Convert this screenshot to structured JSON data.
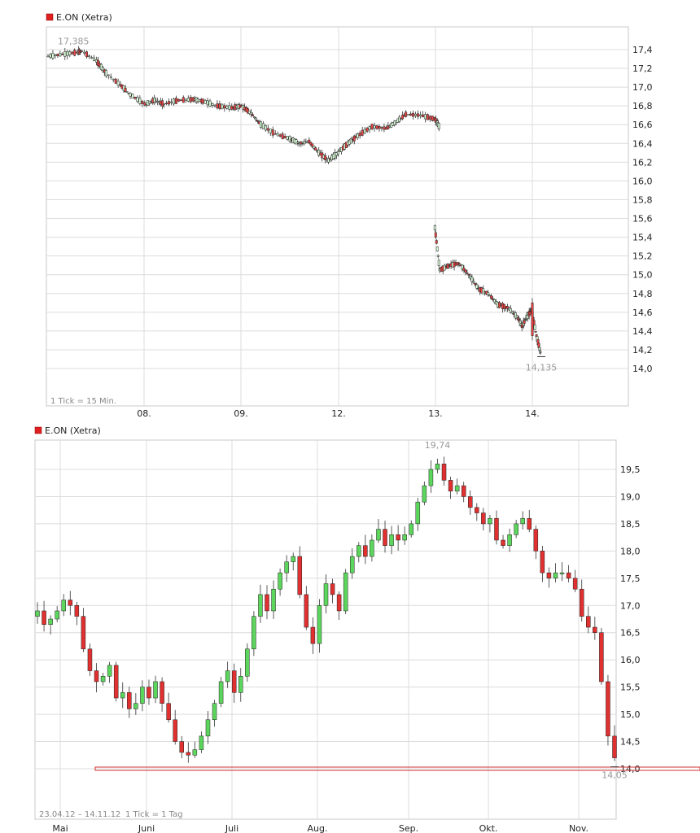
{
  "chart_data": [
    {
      "type": "candlestick",
      "title": "E.ON (Xetra)",
      "legend_color": "#e02020",
      "footnote": "1 Tick = 15 Min.",
      "ylim": [
        13.8,
        17.6
      ],
      "y_ticks": [
        "17,4",
        "17,2",
        "17,0",
        "16,8",
        "16,6",
        "16,4",
        "16,2",
        "16,0",
        "15,8",
        "15,6",
        "15,4",
        "15,2",
        "15,0",
        "14,8",
        "14,6",
        "14,4",
        "14,2",
        "14,0"
      ],
      "y_tick_values": [
        17.4,
        17.2,
        17.0,
        16.8,
        16.6,
        16.4,
        16.2,
        16.0,
        15.8,
        15.6,
        15.4,
        15.2,
        15.0,
        14.8,
        14.6,
        14.4,
        14.2,
        14.0
      ],
      "x_ticks": [
        "08.",
        "09.",
        "12.",
        "13.",
        "14."
      ],
      "x_tick_values": [
        1,
        2,
        3,
        4,
        5
      ],
      "xlim": [
        0,
        6
      ],
      "high_label": "17,385",
      "high_value": 17.385,
      "high_x": 0.28,
      "low_label": "14,135",
      "low_value": 14.135,
      "low_x": 5.1,
      "segments": [
        {
          "x_start": 0.0,
          "x_end": 4.0,
          "points": [
            [
              0.0,
              17.33
            ],
            [
              0.15,
              17.35
            ],
            [
              0.3,
              17.37
            ],
            [
              0.35,
              17.385
            ],
            [
              0.5,
              17.28
            ],
            [
              0.6,
              17.15
            ],
            [
              0.75,
              17.02
            ],
            [
              0.85,
              16.92
            ],
            [
              1.0,
              16.82
            ],
            [
              1.1,
              16.86
            ],
            [
              1.2,
              16.82
            ],
            [
              1.35,
              16.86
            ],
            [
              1.5,
              16.87
            ],
            [
              1.6,
              16.85
            ],
            [
              1.75,
              16.8
            ],
            [
              1.9,
              16.78
            ],
            [
              2.0,
              16.8
            ],
            [
              2.1,
              16.72
            ],
            [
              2.2,
              16.6
            ],
            [
              2.35,
              16.5
            ],
            [
              2.5,
              16.45
            ],
            [
              2.6,
              16.4
            ],
            [
              2.7,
              16.42
            ],
            [
              2.8,
              16.3
            ],
            [
              2.9,
              16.22
            ],
            [
              3.0,
              16.3
            ],
            [
              3.1,
              16.4
            ],
            [
              3.2,
              16.48
            ],
            [
              3.35,
              16.58
            ],
            [
              3.5,
              16.56
            ],
            [
              3.6,
              16.63
            ],
            [
              3.7,
              16.71
            ],
            [
              3.85,
              16.7
            ],
            [
              4.0,
              16.66
            ],
            [
              4.05,
              16.57
            ]
          ]
        },
        {
          "x_start": 4.0,
          "x_end": 5.1,
          "points": [
            [
              4.0,
              15.5
            ],
            [
              4.05,
              15.05
            ],
            [
              4.15,
              15.1
            ],
            [
              4.25,
              15.12
            ],
            [
              4.35,
              15.0
            ],
            [
              4.45,
              14.85
            ],
            [
              4.55,
              14.8
            ],
            [
              4.65,
              14.68
            ],
            [
              4.75,
              14.65
            ],
            [
              4.85,
              14.55
            ],
            [
              4.9,
              14.45
            ],
            [
              4.95,
              14.55
            ],
            [
              5.0,
              14.62
            ],
            [
              5.05,
              14.35
            ],
            [
              5.1,
              14.14
            ]
          ]
        }
      ]
    },
    {
      "type": "candlestick",
      "title": "E.ON (Xetra)",
      "legend_color": "#e02020",
      "footnote_range": "23.04.12 – 14.11.12",
      "footnote": "1 Tick = 1 Tag",
      "ylim": [
        13.8,
        19.9
      ],
      "y_ticks": [
        "19,5",
        "19,0",
        "18,5",
        "18,0",
        "17,5",
        "17,0",
        "16,5",
        "16,0",
        "15,5",
        "15,0",
        "14,5",
        "14,0"
      ],
      "y_tick_values": [
        19.5,
        19.0,
        18.5,
        18.0,
        17.5,
        17.0,
        16.5,
        16.0,
        15.5,
        15.0,
        14.5,
        14.0
      ],
      "x_ticks": [
        "Mai",
        "Juni",
        "Juli",
        "Aug.",
        "Sep.",
        "Okt.",
        "Nov."
      ],
      "x_tick_values": [
        0.06,
        0.2,
        0.34,
        0.48,
        0.62,
        0.745,
        0.89
      ],
      "high_label": "19,74",
      "high_value": 19.74,
      "low_label": "14,05",
      "low_value": 14.05,
      "support_line": 14.0,
      "closes": [
        16.9,
        16.65,
        16.75,
        16.9,
        17.1,
        17.0,
        16.8,
        16.2,
        15.8,
        15.6,
        15.7,
        15.9,
        15.3,
        15.4,
        15.1,
        15.2,
        15.5,
        15.3,
        15.6,
        15.2,
        14.9,
        14.5,
        14.3,
        14.25,
        14.35,
        14.6,
        14.9,
        15.2,
        15.6,
        15.8,
        15.4,
        15.7,
        16.2,
        16.8,
        17.2,
        16.9,
        17.3,
        17.6,
        17.8,
        17.9,
        17.2,
        16.6,
        16.3,
        17.0,
        17.4,
        17.2,
        16.9,
        17.6,
        17.9,
        18.1,
        17.9,
        18.2,
        18.4,
        18.1,
        18.3,
        18.2,
        18.3,
        18.5,
        18.9,
        19.2,
        19.5,
        19.6,
        19.3,
        19.1,
        19.2,
        19.0,
        18.8,
        18.7,
        18.5,
        18.6,
        18.2,
        18.1,
        18.3,
        18.5,
        18.6,
        18.4,
        18.0,
        17.6,
        17.5,
        17.6,
        17.6,
        17.5,
        17.3,
        16.8,
        16.6,
        16.5,
        15.6,
        14.6,
        14.2
      ]
    }
  ]
}
